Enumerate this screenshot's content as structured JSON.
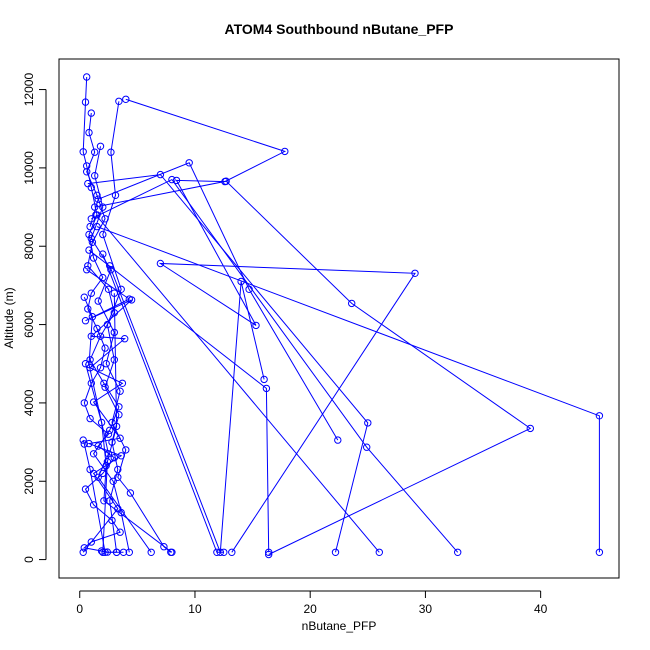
{
  "chart_data": {
    "type": "line",
    "title": "ATOM4 Southbound nButane_PFP",
    "xlabel": "nButane_PFP",
    "ylabel": "Altitude (m)",
    "xlim": [
      -1.8,
      46.8
    ],
    "ylim": [
      -470,
      12780
    ],
    "x_ticks": [
      0,
      10,
      20,
      30,
      40
    ],
    "y_ticks": [
      0,
      2000,
      4000,
      6000,
      8000,
      10000,
      12000
    ],
    "grid": false,
    "legend": "none",
    "series_color": "#0000ff",
    "series": [
      {
        "x": [
          0.6,
          0.5,
          0.3,
          0.6,
          1.0,
          1.5,
          0.8,
          1.2,
          2.0,
          1.0,
          0.7,
          1.5,
          2.2,
          1.8,
          1.0,
          0.4,
          0.9,
          2.5,
          1.6,
          3.0,
          2.0,
          0.5,
          1.2,
          2.8,
          3.5,
          1.0,
          0.4,
          1.9,
          2.4,
          3.2
        ],
        "y": [
          12320,
          11680,
          10410,
          10050,
          9500,
          8800,
          8300,
          7700,
          7200,
          6800,
          6400,
          5900,
          5400,
          4900,
          4500,
          4000,
          3600,
          3200,
          2900,
          2600,
          2200,
          1800,
          1400,
          1000,
          700,
          450,
          300,
          220,
          190,
          185
        ]
      },
      {
        "x": [
          1.0,
          0.8,
          1.3,
          0.6,
          1.5,
          2.2,
          1.1,
          0.7,
          2.5,
          3.0,
          1.8,
          0.9,
          2.1,
          3.4,
          2.6,
          1.2,
          2.9,
          3.6,
          4.3
        ],
        "y": [
          11400,
          10900,
          10400,
          9900,
          9300,
          8700,
          8100,
          7500,
          6900,
          6300,
          5700,
          5100,
          4500,
          3900,
          3300,
          2700,
          2000,
          1200,
          185
        ]
      },
      {
        "x": [
          1.8,
          1.3,
          2.0,
          1.0,
          2.7,
          1.6,
          3.0,
          2.3,
          3.5,
          2.8,
          4.0,
          3.3,
          4.4,
          7.3,
          7.9
        ],
        "y": [
          10550,
          9800,
          9000,
          8200,
          7400,
          6600,
          5800,
          5000,
          4300,
          3500,
          2800,
          2100,
          1700,
          330,
          185
        ]
      },
      {
        "x": [
          3.4,
          2.7,
          3.1,
          2.0,
          3.6,
          2.4,
          3.0,
          2.2,
          3.4,
          2.8,
          3.3,
          2.6,
          3.2
        ],
        "y": [
          11700,
          10400,
          9300,
          8300,
          6900,
          6000,
          5100,
          4400,
          3700,
          3000,
          2300,
          1500,
          185
        ]
      },
      {
        "x": [
          4.0,
          17.8,
          12.6,
          8.4,
          15.3,
          7.0,
          29.1,
          13.2
        ],
        "y": [
          11750,
          10420,
          9650,
          9680,
          5980,
          7560,
          7310,
          185
        ]
      },
      {
        "x": [
          0.9,
          1.6,
          9.5,
          14.7,
          22.4
        ],
        "y": [
          8500,
          9200,
          10130,
          6900,
          3050
        ]
      },
      {
        "x": [
          0.7,
          7.0,
          25.0,
          22.2
        ],
        "y": [
          9600,
          9830,
          3490,
          185
        ]
      },
      {
        "x": [
          1.3,
          12.7,
          23.6,
          39.1,
          16.4
        ],
        "y": [
          9000,
          9660,
          6540,
          3350,
          130
        ]
      },
      {
        "x": [
          1.0,
          8.0,
          24.9,
          32.8
        ],
        "y": [
          8700,
          9700,
          2870,
          185
        ]
      },
      {
        "x": [
          1.5,
          45.1,
          45.1
        ],
        "y": [
          8500,
          3670,
          185
        ]
      },
      {
        "x": [
          0.8,
          16.2,
          16.4
        ],
        "y": [
          7900,
          4370,
          185
        ]
      },
      {
        "x": [
          0.6,
          4.3,
          0.5,
          4.5,
          1.0,
          3.9,
          0.9,
          3.7,
          1.2,
          3.5,
          0.8,
          3.6,
          1.2,
          3.3,
          0.3
        ],
        "y": [
          7400,
          6650,
          6100,
          6630,
          5700,
          5640,
          4900,
          4500,
          4020,
          3100,
          2960,
          2650,
          2200,
          1300,
          185
        ]
      },
      {
        "x": [
          0.4,
          1.1,
          0.8,
          2.5,
          1.6,
          6.2
        ],
        "y": [
          6700,
          6200,
          4980,
          2700,
          2100,
          185
        ]
      },
      {
        "x": [
          0.5,
          1.9,
          2.3,
          2.1,
          8.0
        ],
        "y": [
          5000,
          3500,
          2400,
          1500,
          185
        ]
      },
      {
        "x": [
          2.0,
          11.9,
          12.5
        ],
        "y": [
          7800,
          185,
          185
        ]
      },
      {
        "x": [
          1.4,
          26.0
        ],
        "y": [
          8800,
          185
        ]
      },
      {
        "x": [
          2.6,
          12.2,
          14.0,
          16.0
        ],
        "y": [
          7500,
          185,
          7100,
          4600
        ]
      },
      {
        "x": [
          3.0,
          3.2,
          2.4,
          2.0
        ],
        "y": [
          6800,
          3400,
          2500,
          185
        ]
      },
      {
        "x": [
          0.3,
          0.4,
          0.9,
          2.2,
          3.8
        ],
        "y": [
          3050,
          2950,
          2300,
          185,
          185
        ]
      }
    ]
  }
}
